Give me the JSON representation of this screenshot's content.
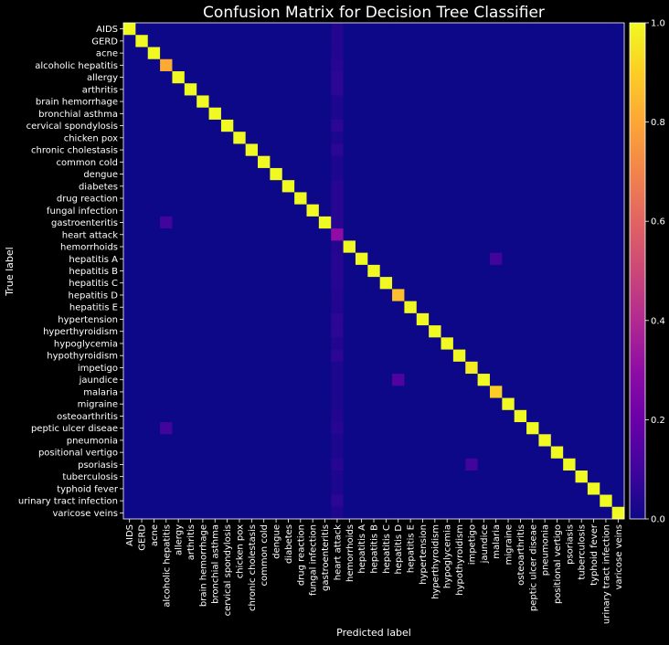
{
  "chart_data": {
    "type": "heatmap",
    "title": "Confusion Matrix for Decision Tree Classifier",
    "xlabel": "Predicted label",
    "ylabel": "True label",
    "labels": [
      "AIDS",
      "GERD",
      "acne",
      "alcoholic hepatitis",
      "allergy",
      "arthritis",
      "brain hemorrhage",
      "bronchial asthma",
      "cervical spondylosis",
      "chicken pox",
      "chronic cholestasis",
      "common cold",
      "dengue",
      "diabetes",
      "drug reaction",
      "fungal infection",
      "gastroenteritis",
      "heart attack",
      "hemorrhoids",
      "hepatitis A",
      "hepatitis B",
      "hepatitis C",
      "hepatitis D",
      "hepatitis E",
      "hypertension",
      "hyperthyroidism",
      "hypoglycemia",
      "hypothyroidism",
      "impetigo",
      "jaundice",
      "malaria",
      "migraine",
      "osteoarthritis",
      "peptic ulcer diseae",
      "pneumonia",
      "positional vertigo",
      "psoriasis",
      "tuberculosis",
      "typhoid fever",
      "urinary tract infection",
      "varicose veins"
    ],
    "diagonal": [
      1,
      1,
      1,
      0.81,
      1,
      1,
      1,
      1,
      1,
      1,
      1,
      1,
      1,
      1,
      1,
      1,
      1,
      0.3,
      1,
      1,
      1,
      1,
      0.86,
      1,
      1,
      1,
      1,
      1,
      0.97,
      1,
      0.9,
      1,
      1,
      1,
      1,
      1,
      1,
      1,
      1,
      1,
      1
    ],
    "off_diagonal": [
      {
        "row": 0,
        "col": 17,
        "value": 0.04
      },
      {
        "row": 1,
        "col": 17,
        "value": 0.04
      },
      {
        "row": 2,
        "col": 17,
        "value": 0.04
      },
      {
        "row": 3,
        "col": 17,
        "value": 0.05
      },
      {
        "row": 4,
        "col": 17,
        "value": 0.06
      },
      {
        "row": 5,
        "col": 17,
        "value": 0.06
      },
      {
        "row": 6,
        "col": 17,
        "value": 0.03
      },
      {
        "row": 7,
        "col": 17,
        "value": 0.03
      },
      {
        "row": 8,
        "col": 17,
        "value": 0.06
      },
      {
        "row": 9,
        "col": 17,
        "value": 0.03
      },
      {
        "row": 10,
        "col": 17,
        "value": 0.06
      },
      {
        "row": 11,
        "col": 17,
        "value": 0.03
      },
      {
        "row": 12,
        "col": 17,
        "value": 0.03
      },
      {
        "row": 13,
        "col": 17,
        "value": 0.05
      },
      {
        "row": 14,
        "col": 17,
        "value": 0.05
      },
      {
        "row": 15,
        "col": 17,
        "value": 0.05
      },
      {
        "row": 16,
        "col": 17,
        "value": 0.05
      },
      {
        "row": 18,
        "col": 17,
        "value": 0.04
      },
      {
        "row": 19,
        "col": 17,
        "value": 0.05
      },
      {
        "row": 20,
        "col": 17,
        "value": 0.05
      },
      {
        "row": 21,
        "col": 17,
        "value": 0.05
      },
      {
        "row": 22,
        "col": 17,
        "value": 0.04
      },
      {
        "row": 23,
        "col": 17,
        "value": 0.04
      },
      {
        "row": 24,
        "col": 17,
        "value": 0.06
      },
      {
        "row": 25,
        "col": 17,
        "value": 0.06
      },
      {
        "row": 26,
        "col": 17,
        "value": 0.04
      },
      {
        "row": 27,
        "col": 17,
        "value": 0.06
      },
      {
        "row": 28,
        "col": 17,
        "value": 0.03
      },
      {
        "row": 29,
        "col": 17,
        "value": 0.03
      },
      {
        "row": 30,
        "col": 17,
        "value": 0.03
      },
      {
        "row": 31,
        "col": 17,
        "value": 0.03
      },
      {
        "row": 32,
        "col": 17,
        "value": 0.04
      },
      {
        "row": 33,
        "col": 17,
        "value": 0.05
      },
      {
        "row": 34,
        "col": 17,
        "value": 0.03
      },
      {
        "row": 35,
        "col": 17,
        "value": 0.03
      },
      {
        "row": 36,
        "col": 17,
        "value": 0.05
      },
      {
        "row": 37,
        "col": 17,
        "value": 0.03
      },
      {
        "row": 38,
        "col": 17,
        "value": 0.03
      },
      {
        "row": 39,
        "col": 17,
        "value": 0.06
      },
      {
        "row": 40,
        "col": 17,
        "value": 0.03
      },
      {
        "row": 3,
        "col": 3,
        "value": 0.81
      },
      {
        "row": 16,
        "col": 3,
        "value": 0.1
      },
      {
        "row": 19,
        "col": 30,
        "value": 0.1
      },
      {
        "row": 29,
        "col": 22,
        "value": 0.14
      },
      {
        "row": 33,
        "col": 3,
        "value": 0.1
      },
      {
        "row": 36,
        "col": 28,
        "value": 0.1
      }
    ],
    "colorbar": {
      "colormap": "plasma",
      "vmin": 0.0,
      "vmax": 1.0,
      "ticks": [
        "0.0",
        "0.2",
        "0.4",
        "0.6",
        "0.8",
        "1.0"
      ]
    },
    "colors": {
      "background": "#000000",
      "text": "#ffffff"
    }
  }
}
